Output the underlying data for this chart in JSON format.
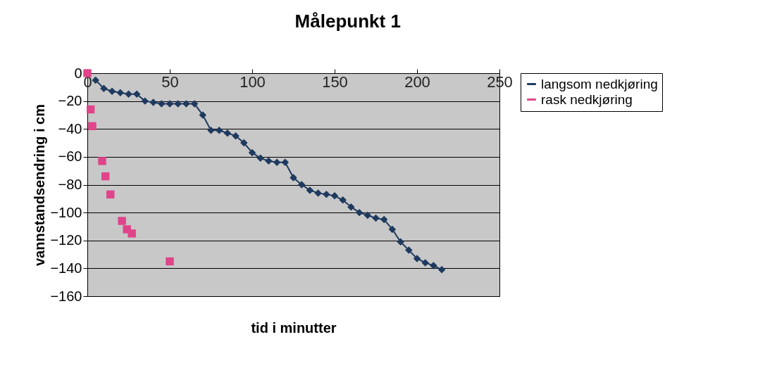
{
  "chart_data": {
    "type": "line",
    "title": "Målepunkt 1",
    "xlabel": "tid i minutter",
    "ylabel": "vannstandsendring i cm",
    "xlim": [
      0,
      250
    ],
    "xticks": [
      0,
      50,
      100,
      150,
      200,
      250
    ],
    "ylim": [
      -160,
      0
    ],
    "yticks": [
      -160,
      -140,
      -120,
      -100,
      -80,
      -60,
      -40,
      -20,
      0
    ],
    "grid": "y",
    "legend": "right",
    "series": [
      {
        "name": "langsom nedkjøring",
        "marker": "diamond",
        "color": "#1f3a5f",
        "x": [
          5,
          10,
          15,
          20,
          25,
          30,
          35,
          40,
          45,
          50,
          55,
          60,
          65,
          70,
          75,
          80,
          85,
          90,
          95,
          100,
          105,
          110,
          115,
          120,
          125,
          130,
          135,
          140,
          145,
          150,
          155,
          160,
          165,
          170,
          175,
          180,
          185,
          190,
          195,
          200,
          205,
          210,
          215
        ],
        "values": [
          -5,
          -11,
          -13,
          -14,
          -15,
          -15,
          -20,
          -21,
          -22,
          -22,
          -22,
          -22,
          -22,
          -30,
          -41,
          -41,
          -43,
          -45,
          -50,
          -57,
          -61,
          -63,
          -64,
          -64,
          -75,
          -80,
          -84,
          -86,
          -87,
          -88,
          -91,
          -96,
          -100,
          -102,
          -104,
          -105,
          -112,
          -121,
          -127,
          -133,
          -136,
          -138,
          -141
        ]
      },
      {
        "name": "rask nedkjøring",
        "type": "scatter",
        "marker": "square",
        "color": "#e0448a",
        "x": [
          0,
          2,
          3,
          9,
          11,
          14,
          21,
          24,
          27,
          50
        ],
        "values": [
          0,
          -26,
          -38,
          -63,
          -74,
          -87,
          -106,
          -112,
          -115,
          -135
        ]
      }
    ]
  }
}
